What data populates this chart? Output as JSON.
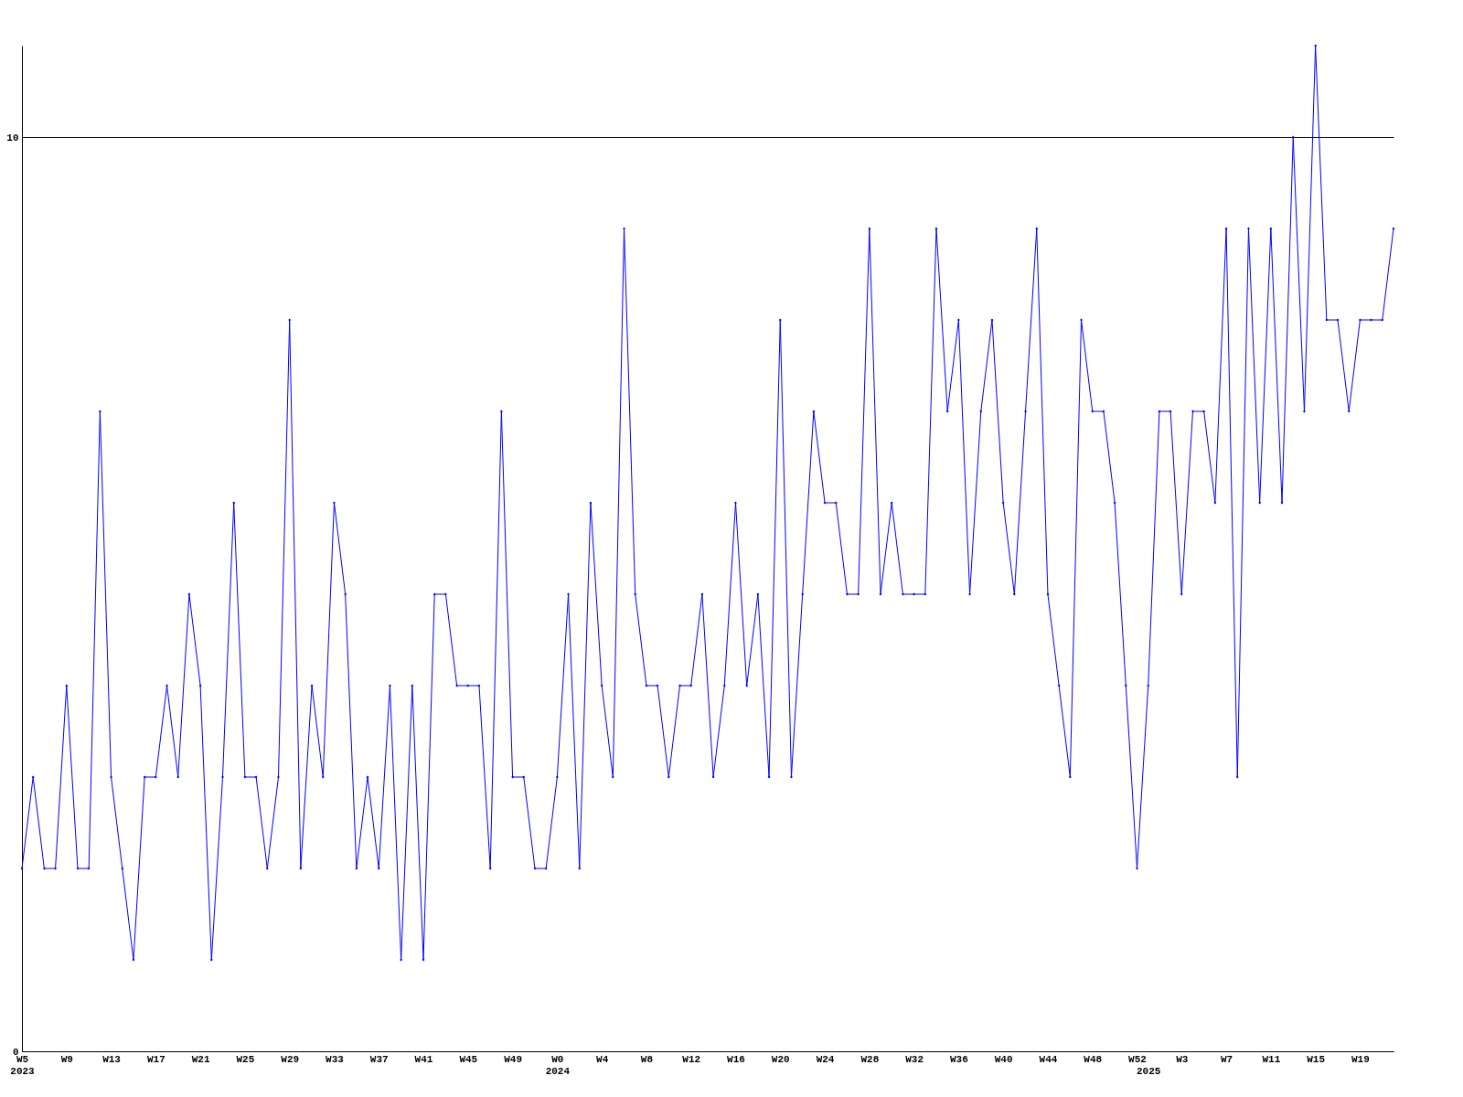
{
  "chart_data": {
    "type": "line",
    "categories": [
      "W5\n2023",
      null,
      null,
      null,
      "W9",
      null,
      null,
      null,
      "W13",
      null,
      null,
      null,
      "W17",
      null,
      null,
      null,
      "W21",
      null,
      null,
      null,
      "W25",
      null,
      null,
      null,
      "W29",
      null,
      null,
      null,
      "W33",
      null,
      null,
      null,
      "W37",
      null,
      null,
      null,
      "W41",
      null,
      null,
      null,
      "W45",
      null,
      null,
      null,
      "W49",
      null,
      null,
      null,
      "W0\n2024",
      null,
      null,
      null,
      "W4",
      null,
      null,
      null,
      "W8",
      null,
      null,
      null,
      "W12",
      null,
      null,
      null,
      "W16",
      null,
      null,
      null,
      "W20",
      null,
      null,
      null,
      "W24",
      null,
      null,
      null,
      "W28",
      null,
      null,
      null,
      "W32",
      null,
      null,
      null,
      "W36",
      null,
      null,
      null,
      "W40",
      null,
      null,
      null,
      "W44",
      null,
      null,
      null,
      "W48",
      null,
      null,
      null,
      "W52",
      "\n2025",
      null,
      null,
      "W3",
      null,
      null,
      null,
      "W7",
      null,
      null,
      null,
      "W11",
      null,
      null,
      null,
      "W15",
      null,
      null,
      null,
      "W19",
      null,
      null,
      null
    ],
    "series": [
      {
        "color": "#0000ff",
        "values": [
          2,
          3,
          2,
          2,
          4,
          2,
          2,
          7,
          3,
          2,
          1,
          3,
          3,
          4,
          3,
          5,
          4,
          1,
          3,
          6,
          3,
          3,
          2,
          3,
          8,
          2,
          4,
          3,
          6,
          5,
          2,
          3,
          2,
          4,
          1,
          4,
          1,
          5,
          5,
          4,
          4,
          4,
          2,
          7,
          3,
          3,
          2,
          2,
          3,
          5,
          2,
          6,
          4,
          3,
          9,
          5,
          4,
          4,
          3,
          4,
          4,
          5,
          3,
          4,
          6,
          4,
          5,
          3,
          8,
          3,
          5,
          7,
          6,
          6,
          5,
          5,
          9,
          5,
          6,
          5,
          5,
          5,
          9,
          7,
          8,
          5,
          7,
          8,
          6,
          5,
          7,
          9,
          5,
          4,
          3,
          8,
          7,
          7,
          6,
          4,
          2,
          4,
          7,
          7,
          5,
          7,
          7,
          6,
          9,
          3,
          9,
          6,
          9,
          6,
          10,
          7,
          11,
          8,
          8,
          7,
          8,
          8,
          8,
          9
        ]
      }
    ],
    "ylim": [
      0,
      11
    ],
    "yticks": [
      0,
      10
    ],
    "grid": "y",
    "marker": "diamond",
    "line_style": "solid",
    "legend": false
  }
}
